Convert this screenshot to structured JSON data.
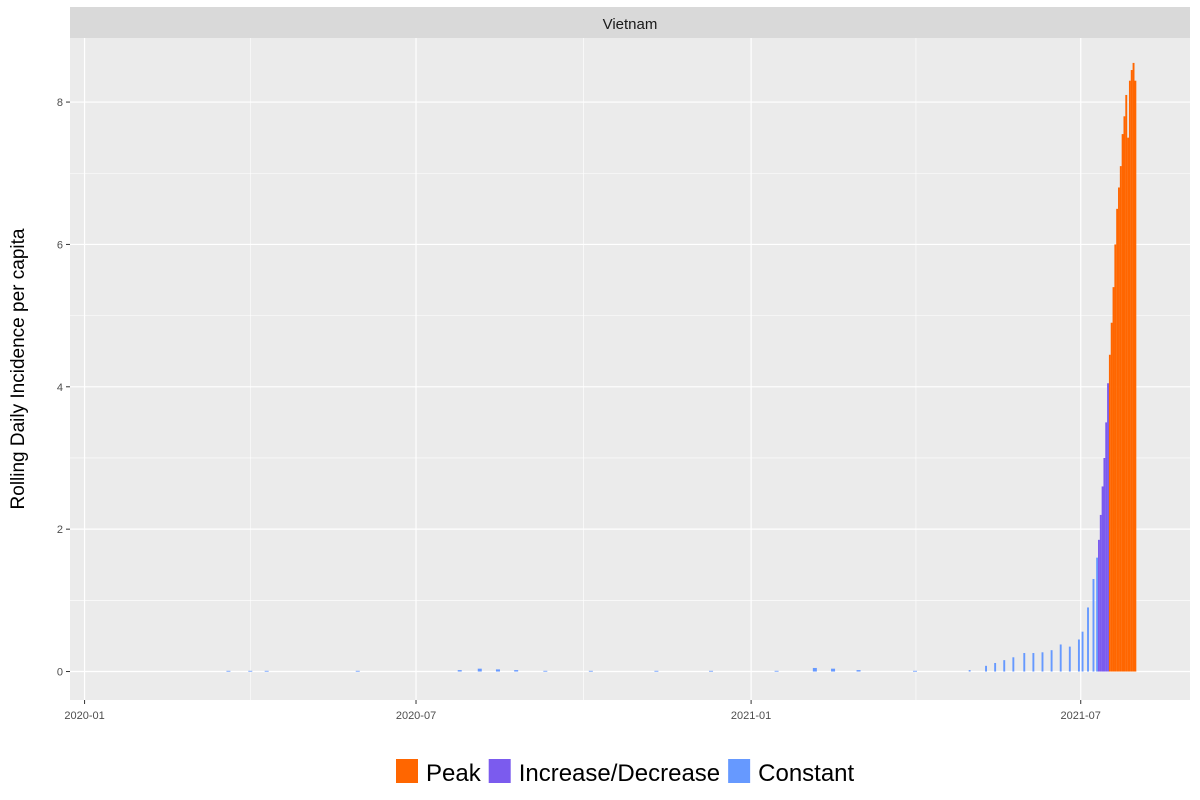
{
  "chart_data": {
    "type": "bar",
    "facet_label": "Vietnam",
    "ylabel": "Rolling Daily Incidence per capita",
    "xlabel": "",
    "x_range": [
      "2019-12-24",
      "2021-08-30"
    ],
    "ylim": [
      -0.4,
      8.9
    ],
    "x_ticks": [
      {
        "date": "2020-01-01",
        "label": "2020-01"
      },
      {
        "date": "2020-07-01",
        "label": "2020-07"
      },
      {
        "date": "2021-01-01",
        "label": "2021-01"
      },
      {
        "date": "2021-07-01",
        "label": "2021-07"
      }
    ],
    "y_ticks": [
      0,
      2,
      4,
      6,
      8
    ],
    "grid": true,
    "legend_position": "bottom",
    "legend": [
      {
        "label": "Peak",
        "color": "#FF6600"
      },
      {
        "label": "Increase/Decrease",
        "color": "#7B5BEE"
      },
      {
        "label": "Constant",
        "color": "#6699FF"
      }
    ],
    "series": [
      {
        "name": "Constant",
        "color": "#6699FF",
        "points": [
          [
            "2020-03-20",
            0.01
          ],
          [
            "2020-04-01",
            0.01
          ],
          [
            "2020-04-10",
            0.01
          ],
          [
            "2020-05-30",
            0.01
          ],
          [
            "2020-07-25",
            0.02
          ],
          [
            "2020-08-05",
            0.04
          ],
          [
            "2020-08-15",
            0.03
          ],
          [
            "2020-08-25",
            0.02
          ],
          [
            "2020-09-10",
            0.01
          ],
          [
            "2020-10-05",
            0.01
          ],
          [
            "2020-11-10",
            0.01
          ],
          [
            "2020-12-10",
            0.01
          ],
          [
            "2021-01-15",
            0.01
          ],
          [
            "2021-02-05",
            0.05
          ],
          [
            "2021-02-15",
            0.04
          ],
          [
            "2021-03-01",
            0.02
          ],
          [
            "2021-04-01",
            0.01
          ],
          [
            "2021-05-01",
            0.02
          ],
          [
            "2021-05-10",
            0.08
          ],
          [
            "2021-05-15",
            0.12
          ],
          [
            "2021-05-20",
            0.16
          ],
          [
            "2021-05-25",
            0.2
          ],
          [
            "2021-05-31",
            0.26
          ],
          [
            "2021-06-05",
            0.26
          ],
          [
            "2021-06-10",
            0.27
          ],
          [
            "2021-06-15",
            0.3
          ],
          [
            "2021-06-20",
            0.38
          ],
          [
            "2021-06-25",
            0.35
          ],
          [
            "2021-06-30",
            0.45
          ],
          [
            "2021-07-02",
            0.56
          ],
          [
            "2021-07-05",
            0.9
          ],
          [
            "2021-07-08",
            1.3
          ],
          [
            "2021-07-10",
            1.6
          ]
        ]
      },
      {
        "name": "Increase/Decrease",
        "color": "#7B5BEE",
        "points": [
          [
            "2021-07-11",
            1.85
          ],
          [
            "2021-07-12",
            2.2
          ],
          [
            "2021-07-13",
            2.6
          ],
          [
            "2021-07-14",
            3.0
          ],
          [
            "2021-07-15",
            3.5
          ],
          [
            "2021-07-16",
            4.05
          ]
        ]
      },
      {
        "name": "Peak",
        "color": "#FF6600",
        "points": [
          [
            "2021-07-17",
            4.45
          ],
          [
            "2021-07-18",
            4.9
          ],
          [
            "2021-07-19",
            5.4
          ],
          [
            "2021-07-20",
            6.0
          ],
          [
            "2021-07-21",
            6.5
          ],
          [
            "2021-07-22",
            6.8
          ],
          [
            "2021-07-23",
            7.1
          ],
          [
            "2021-07-24",
            7.55
          ],
          [
            "2021-07-25",
            7.8
          ],
          [
            "2021-07-26",
            8.1
          ],
          [
            "2021-07-27",
            7.5
          ],
          [
            "2021-07-28",
            8.3
          ],
          [
            "2021-07-29",
            8.45
          ],
          [
            "2021-07-30",
            8.55
          ],
          [
            "2021-07-31",
            8.3
          ]
        ]
      }
    ]
  }
}
